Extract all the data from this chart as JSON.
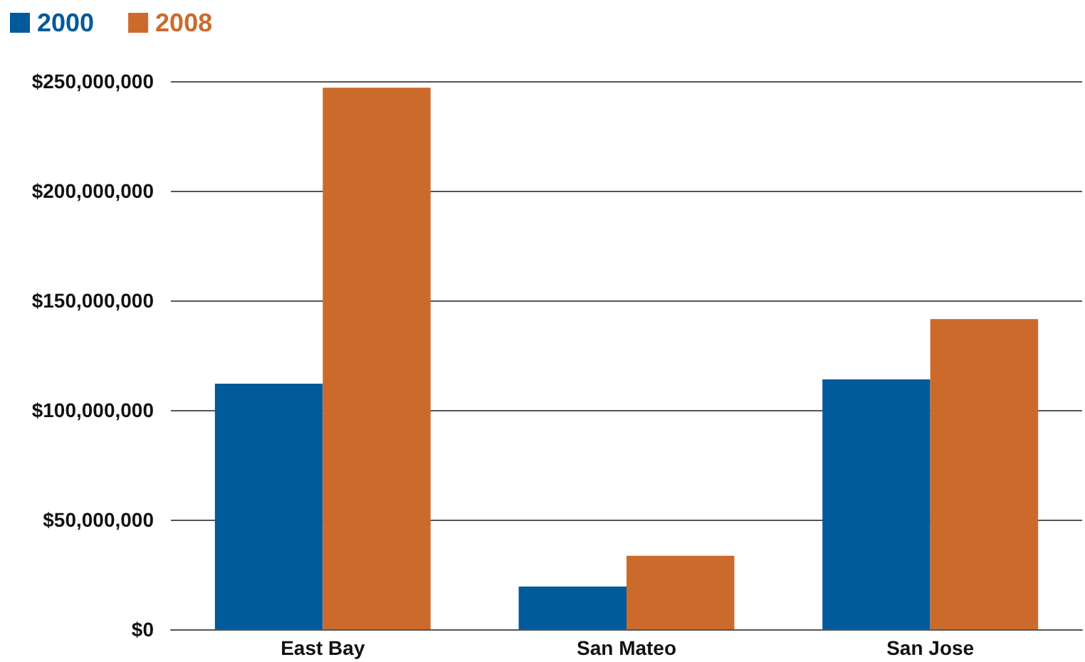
{
  "chart_data": {
    "type": "bar",
    "categories": [
      "East Bay",
      "San Mateo",
      "San Jose"
    ],
    "series": [
      {
        "name": "2000",
        "color": "#005a9c",
        "values": [
          112000000,
          19500000,
          114000000
        ]
      },
      {
        "name": "2008",
        "color": "#cc6a2c",
        "values": [
          247000000,
          33500000,
          141500000
        ]
      }
    ],
    "ylim": [
      0,
      250000000
    ],
    "yticks": [
      {
        "value": 0,
        "label": "$0"
      },
      {
        "value": 50000000,
        "label": "$50,000,000"
      },
      {
        "value": 100000000,
        "label": "$100,000,000"
      },
      {
        "value": 150000000,
        "label": "$150,000,000"
      },
      {
        "value": 200000000,
        "label": "$200,000,000"
      },
      {
        "value": 250000000,
        "label": "$250,000,000"
      }
    ],
    "grid": "y",
    "legend": "top left"
  }
}
